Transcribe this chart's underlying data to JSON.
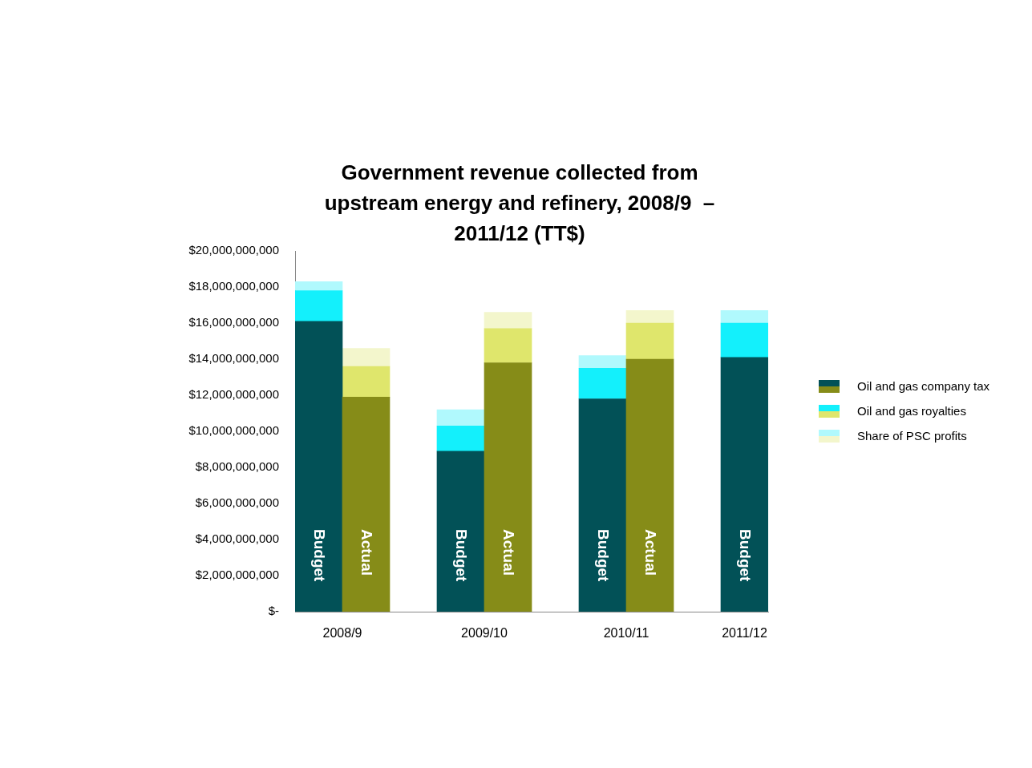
{
  "chart_data": {
    "type": "bar",
    "title": "Government revenue collected from upstream energy and refinery, 2008/9  – 2011/12 (TT$)",
    "categories": [
      "Budget",
      "Actual",
      null,
      "Budget",
      "Actual",
      null,
      "Budget",
      "Actual",
      null,
      "Budget"
    ],
    "stacked": true,
    "series": [
      {
        "name": "Oil and gas company tax",
        "colors": [
          "#025157",
          "#868c18",
          null,
          "#025157",
          "#868c18",
          null,
          "#025157",
          "#868c18",
          null,
          "#025157"
        ],
        "values": [
          16100000000,
          11900000000,
          null,
          8900000000,
          13800000000,
          null,
          11800000000,
          14000000000,
          null,
          14100000000
        ]
      },
      {
        "name": "Oil and gas royalties",
        "colors": [
          "#13f0fc",
          "#dfe66c",
          null,
          "#13f0fc",
          "#dfe66c",
          null,
          "#13f0fc",
          "#dfe66c",
          null,
          "#13f0fc"
        ],
        "values": [
          1700000000,
          1700000000,
          null,
          1400000000,
          1900000000,
          null,
          1700000000,
          2000000000,
          null,
          1900000000
        ]
      },
      {
        "name": "Share of PSC profits",
        "colors": [
          "#b0f9fd",
          "#f3f6cc",
          null,
          "#b0f9fd",
          "#f3f6cc",
          null,
          "#b0f9fd",
          "#f3f6cc",
          null,
          "#b0f9fd"
        ],
        "values": [
          500000000,
          1000000000,
          null,
          900000000,
          900000000,
          null,
          700000000,
          700000000,
          null,
          700000000
        ]
      }
    ],
    "ylim": [
      0,
      20000000000
    ],
    "yticks": [
      {
        "value": 0,
        "label": "$-"
      },
      {
        "value": 2000000000,
        "label": "$2,000,000,000"
      },
      {
        "value": 4000000000,
        "label": "$4,000,000,000"
      },
      {
        "value": 6000000000,
        "label": "$6,000,000,000"
      },
      {
        "value": 8000000000,
        "label": "$8,000,000,000"
      },
      {
        "value": 10000000000,
        "label": "$10,000,000,000"
      },
      {
        "value": 12000000000,
        "label": "$12,000,000,000"
      },
      {
        "value": 14000000000,
        "label": "$14,000,000,000"
      },
      {
        "value": 16000000000,
        "label": "$16,000,000,000"
      },
      {
        "value": 18000000000,
        "label": "$18,000,000,000"
      },
      {
        "value": 20000000000,
        "label": "$20,000,000,000"
      }
    ],
    "annotations": [
      "2008/9",
      "2009/10",
      "2010/11",
      "2011/12"
    ],
    "legend": "right"
  }
}
